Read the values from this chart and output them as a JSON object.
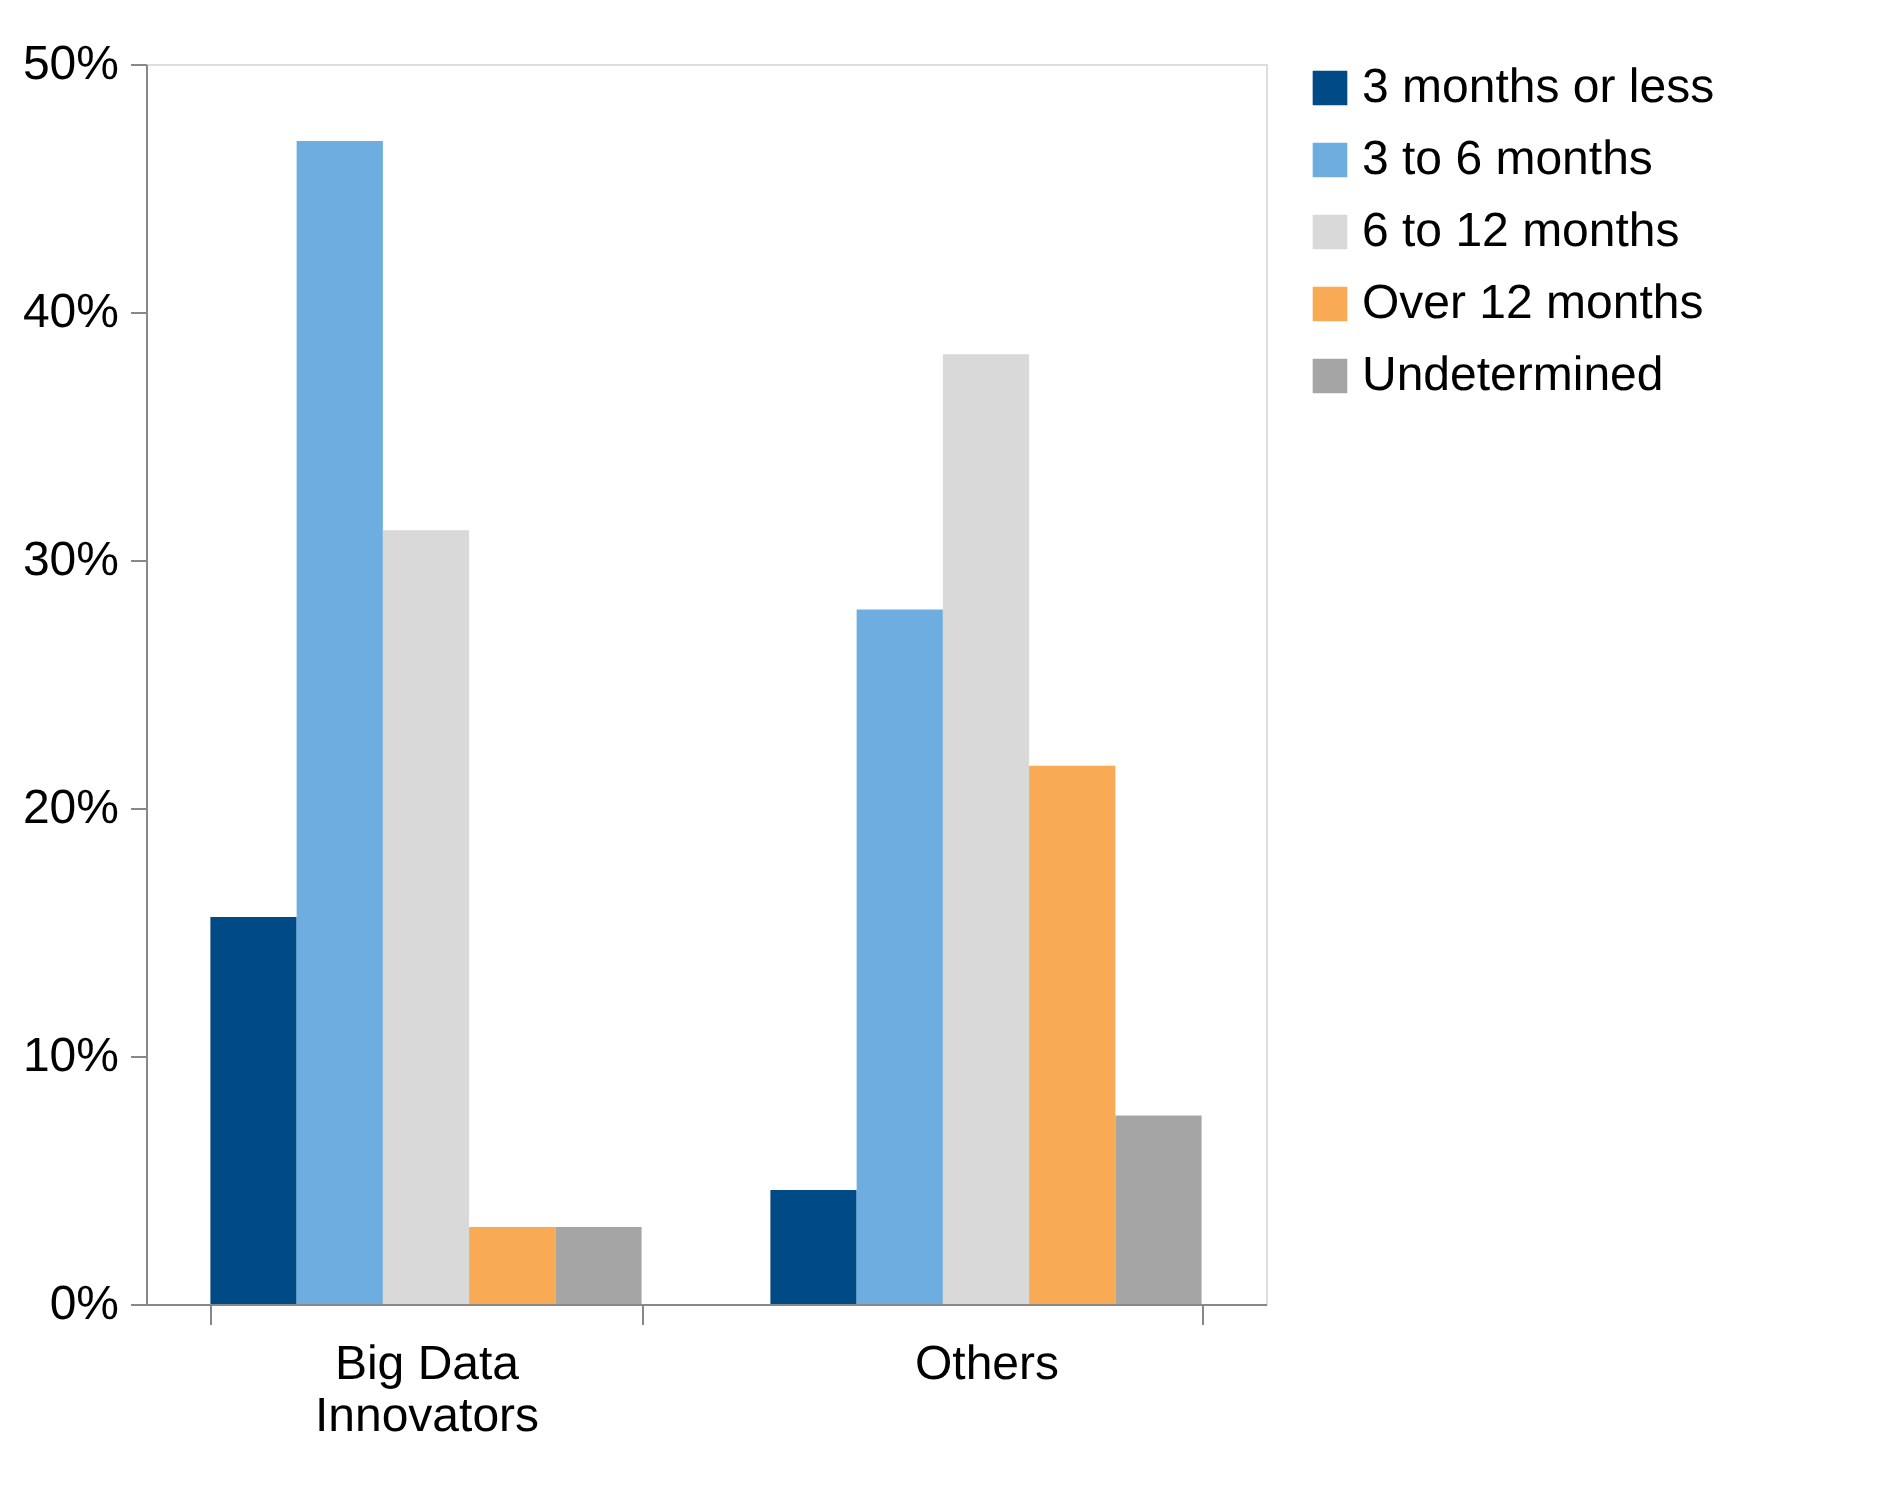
{
  "chart_data": {
    "type": "bar",
    "categories": [
      "Big Data Innovators",
      "Others"
    ],
    "series": [
      {
        "name": "3 months or less",
        "color": "#004a86",
        "values": [
          15.6,
          4.6
        ]
      },
      {
        "name": "3 to 6 months",
        "color": "#6daddf",
        "values": [
          46.9,
          28.0
        ]
      },
      {
        "name": "6 to 12 months",
        "color": "#d9d9d9",
        "values": [
          31.2,
          38.3
        ]
      },
      {
        "name": "Over 12 months",
        "color": "#f9aa55",
        "values": [
          3.1,
          21.7
        ]
      },
      {
        "name": "Undetermined",
        "color": "#a5a5a5",
        "values": [
          3.1,
          7.6
        ]
      }
    ],
    "ylim": [
      0,
      50
    ],
    "yticks": [
      {
        "value": 0,
        "label": "0%"
      },
      {
        "value": 10,
        "label": "10%"
      },
      {
        "value": 20,
        "label": "20%"
      },
      {
        "value": 30,
        "label": "30%"
      },
      {
        "value": 40,
        "label": "40%"
      },
      {
        "value": 50,
        "label": "50%"
      }
    ],
    "grid": false,
    "legend": "right"
  }
}
